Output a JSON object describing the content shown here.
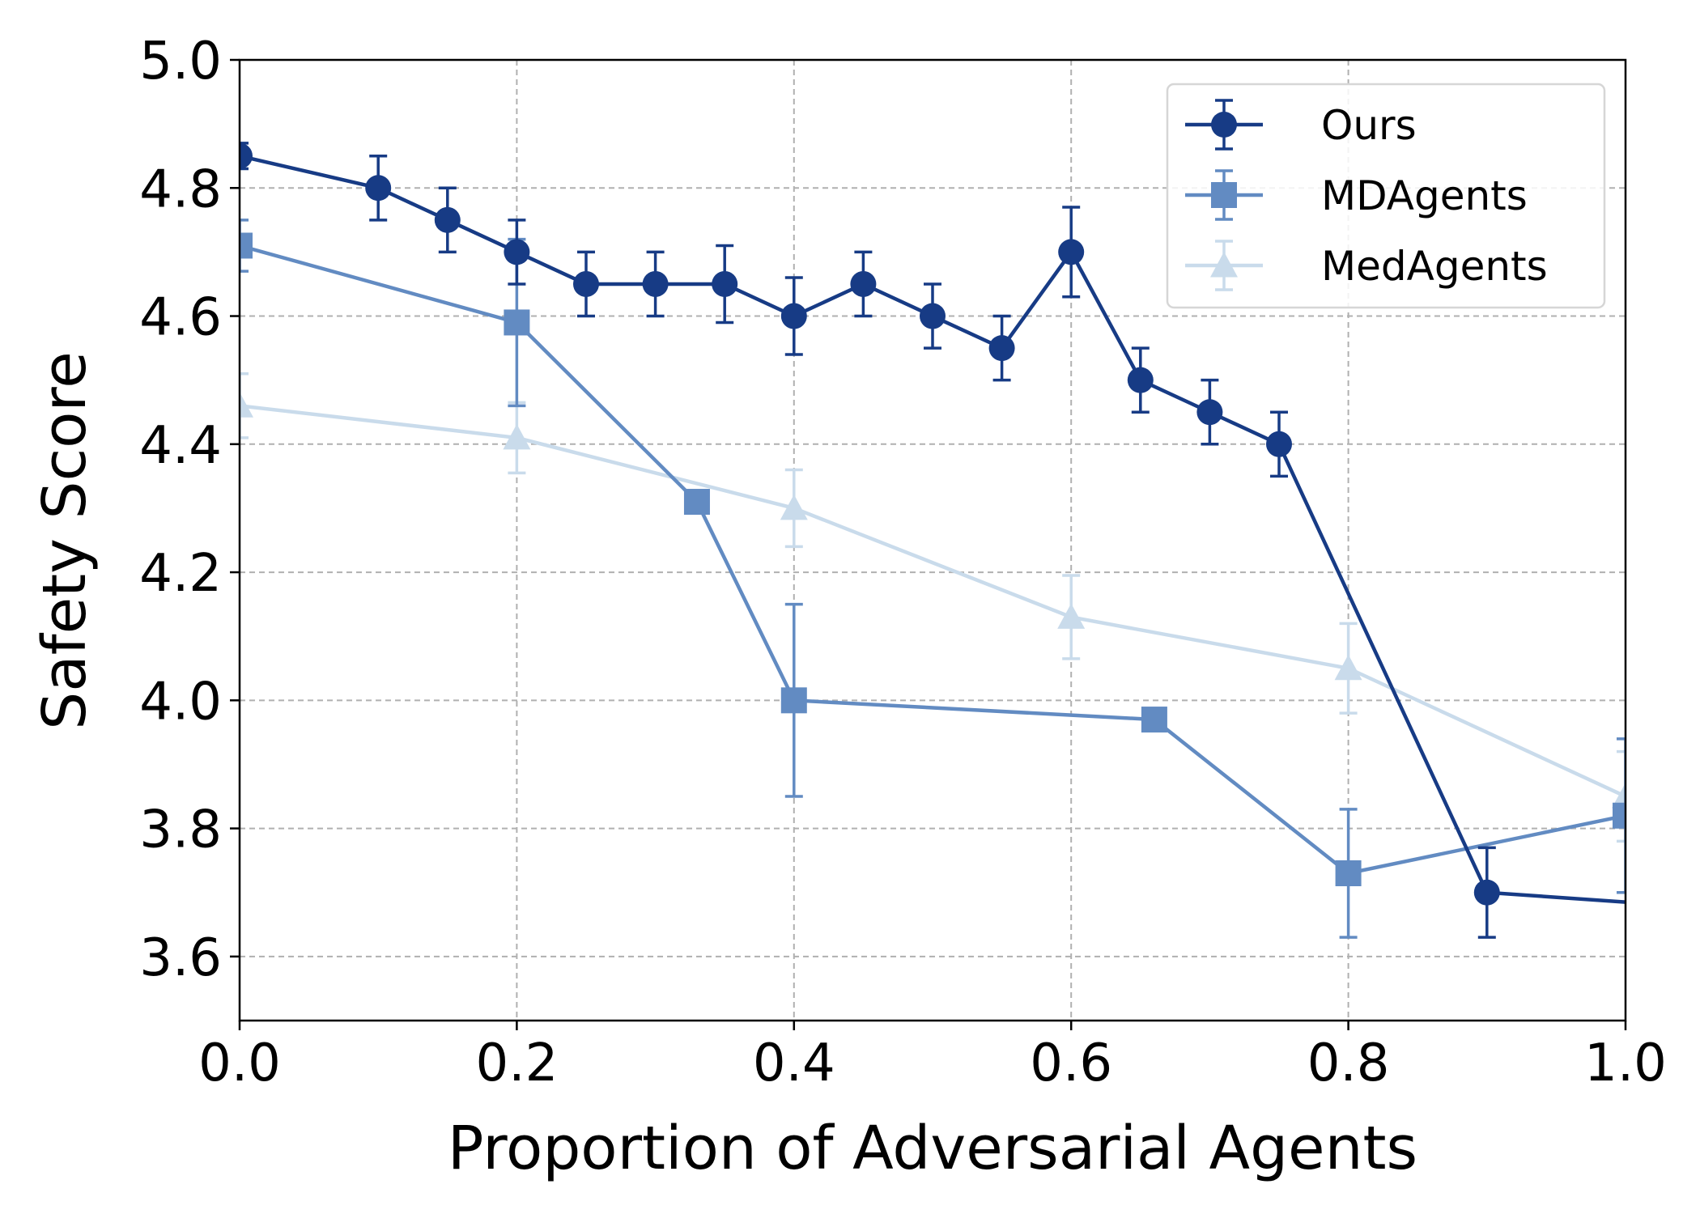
{
  "chart_data": {
    "type": "line",
    "title": "",
    "xlabel": "Proportion of Adversarial Agents",
    "ylabel": "Safety Score",
    "xlim": [
      0.0,
      1.0
    ],
    "ylim": [
      3.5,
      5.0
    ],
    "xticks": [
      "0.0",
      "0.2",
      "0.4",
      "0.6",
      "0.8",
      "1.0"
    ],
    "yticks": [
      "3.6",
      "3.8",
      "4.0",
      "4.2",
      "4.4",
      "4.6",
      "4.8",
      "5.0"
    ],
    "grid": true,
    "legend_position": "top-right",
    "series": [
      {
        "name": "Ours",
        "color": "#173b85",
        "marker": "circle",
        "x": [
          0.0,
          0.1,
          0.15,
          0.2,
          0.25,
          0.3,
          0.35,
          0.4,
          0.45,
          0.5,
          0.55,
          0.6,
          0.65,
          0.7,
          0.75,
          0.9,
          1.0
        ],
        "y": [
          4.85,
          4.8,
          4.75,
          4.7,
          4.65,
          4.65,
          4.65,
          4.6,
          4.65,
          4.6,
          4.55,
          4.7,
          4.5,
          4.45,
          4.4,
          3.7,
          3.685
        ],
        "err": [
          0.02,
          0.05,
          0.05,
          0.05,
          0.05,
          0.05,
          0.06,
          0.06,
          0.05,
          0.05,
          0.05,
          0.07,
          0.05,
          0.05,
          0.05,
          0.07,
          0
        ]
      },
      {
        "name": "MDAgents",
        "color": "#628bc2",
        "marker": "square",
        "x": [
          0.0,
          0.2,
          0.33,
          0.4,
          0.66,
          0.8,
          1.0
        ],
        "y": [
          4.71,
          4.59,
          4.31,
          4.0,
          3.97,
          3.73,
          3.82
        ],
        "err": [
          0.04,
          0.13,
          0.0,
          0.15,
          0.0,
          0.1,
          0.12
        ]
      },
      {
        "name": "MedAgents",
        "color": "#c9dbeb",
        "marker": "triangle",
        "x": [
          0.0,
          0.2,
          0.4,
          0.6,
          0.8,
          1.0
        ],
        "y": [
          4.46,
          4.41,
          4.3,
          4.13,
          4.05,
          3.85
        ],
        "err": [
          0.05,
          0.055,
          0.06,
          0.065,
          0.07,
          0.07
        ]
      }
    ]
  }
}
